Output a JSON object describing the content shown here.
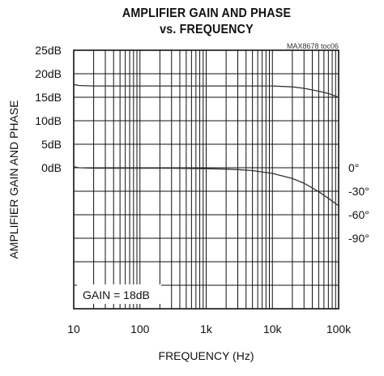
{
  "chart_data": {
    "type": "line",
    "title_line1": "AMPLIFIER GAIN AND PHASE",
    "title_line2": "vs. FREQUENCY",
    "chart_id": "MAX8678 toc06",
    "xlabel": "FREQUENCY (Hz)",
    "ylabel": "AMPLIFIER GAIN AND PHASE",
    "x_scale": "log",
    "xlim": [
      10,
      100000
    ],
    "x_ticks": [
      "10",
      "100",
      "1k",
      "10k",
      "100k"
    ],
    "ylim_left": [
      -30,
      25
    ],
    "y_ticks_left": [
      "25dB",
      "20dB",
      "15dB",
      "10dB",
      "5dB",
      "0dB"
    ],
    "y_ticks_right": [
      "0°",
      "-30°",
      "-60°",
      "-90°"
    ],
    "grid": true,
    "annotation": "GAIN = 18dB",
    "series": [
      {
        "x": [
          10,
          12,
          20,
          50,
          100,
          300,
          1000,
          3000,
          10000,
          20000,
          30000,
          50000,
          70000,
          100000
        ],
        "y": [
          17.7,
          17.5,
          17.4,
          17.4,
          17.4,
          17.4,
          17.4,
          17.4,
          17.4,
          17.2,
          16.9,
          16.3,
          15.8,
          15.0
        ]
      },
      {
        "x": [
          10,
          12,
          20,
          50,
          100,
          300,
          1000,
          2000,
          3000,
          5000,
          10000,
          20000,
          30000,
          50000,
          70000,
          100000
        ],
        "y": [
          0.2,
          0.0,
          -0.1,
          -0.1,
          -0.1,
          -0.1,
          -0.2,
          -0.3,
          -0.4,
          -0.6,
          -1.2,
          -2.3,
          -3.3,
          -5.1,
          -6.5,
          -8.1
        ]
      }
    ]
  }
}
